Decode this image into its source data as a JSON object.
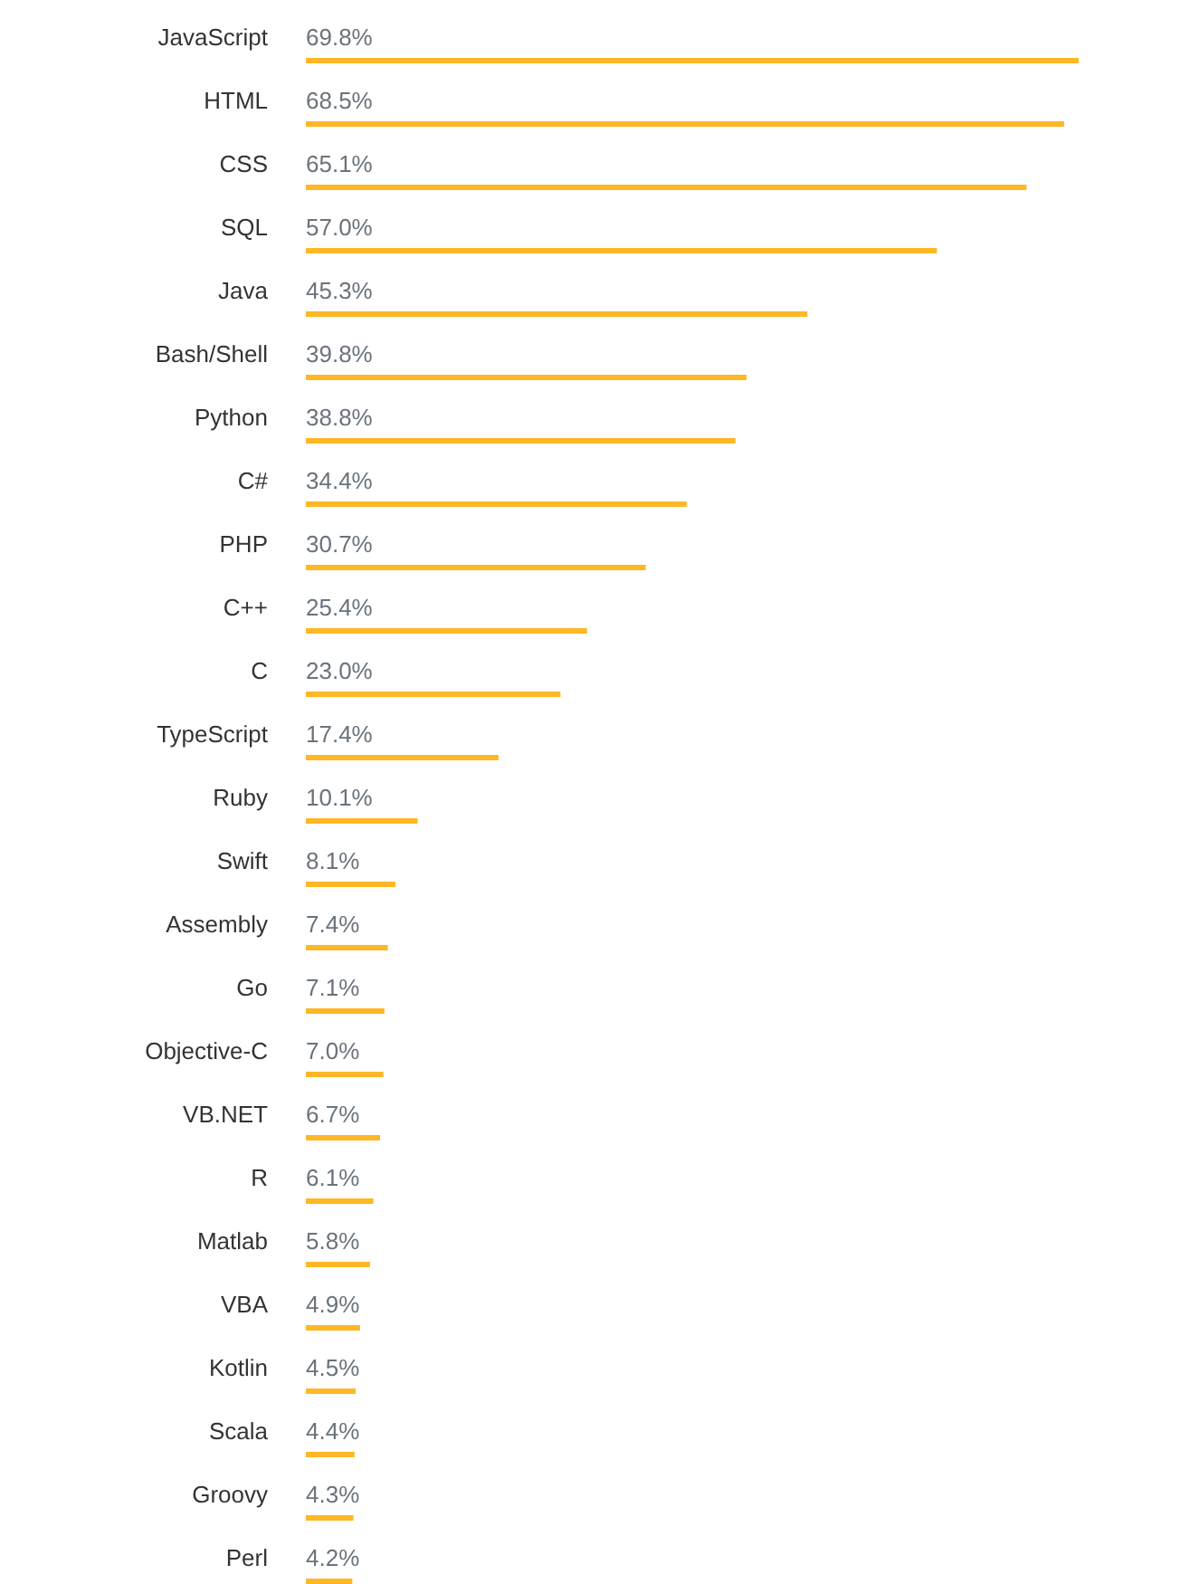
{
  "chart_data": {
    "type": "bar",
    "orientation": "horizontal",
    "categories": [
      "JavaScript",
      "HTML",
      "CSS",
      "SQL",
      "Java",
      "Bash/Shell",
      "Python",
      "C#",
      "PHP",
      "C++",
      "C",
      "TypeScript",
      "Ruby",
      "Swift",
      "Assembly",
      "Go",
      "Objective-C",
      "VB.NET",
      "R",
      "Matlab",
      "VBA",
      "Kotlin",
      "Scala",
      "Groovy",
      "Perl"
    ],
    "values": [
      69.8,
      68.5,
      65.1,
      57.0,
      45.3,
      39.8,
      38.8,
      34.4,
      30.7,
      25.4,
      23.0,
      17.4,
      10.1,
      8.1,
      7.4,
      7.1,
      7.0,
      6.7,
      6.1,
      5.8,
      4.9,
      4.5,
      4.4,
      4.3,
      4.2
    ],
    "value_labels": [
      "69.8%",
      "68.5%",
      "65.1%",
      "57.0%",
      "45.3%",
      "39.8%",
      "38.8%",
      "34.4%",
      "30.7%",
      "25.4%",
      "23.0%",
      "17.4%",
      "10.1%",
      "8.1%",
      "7.4%",
      "7.1%",
      "7.0%",
      "6.7%",
      "6.1%",
      "5.8%",
      "4.9%",
      "4.5%",
      "4.4%",
      "4.3%",
      "4.2%"
    ],
    "color": "#ffb726"
  }
}
